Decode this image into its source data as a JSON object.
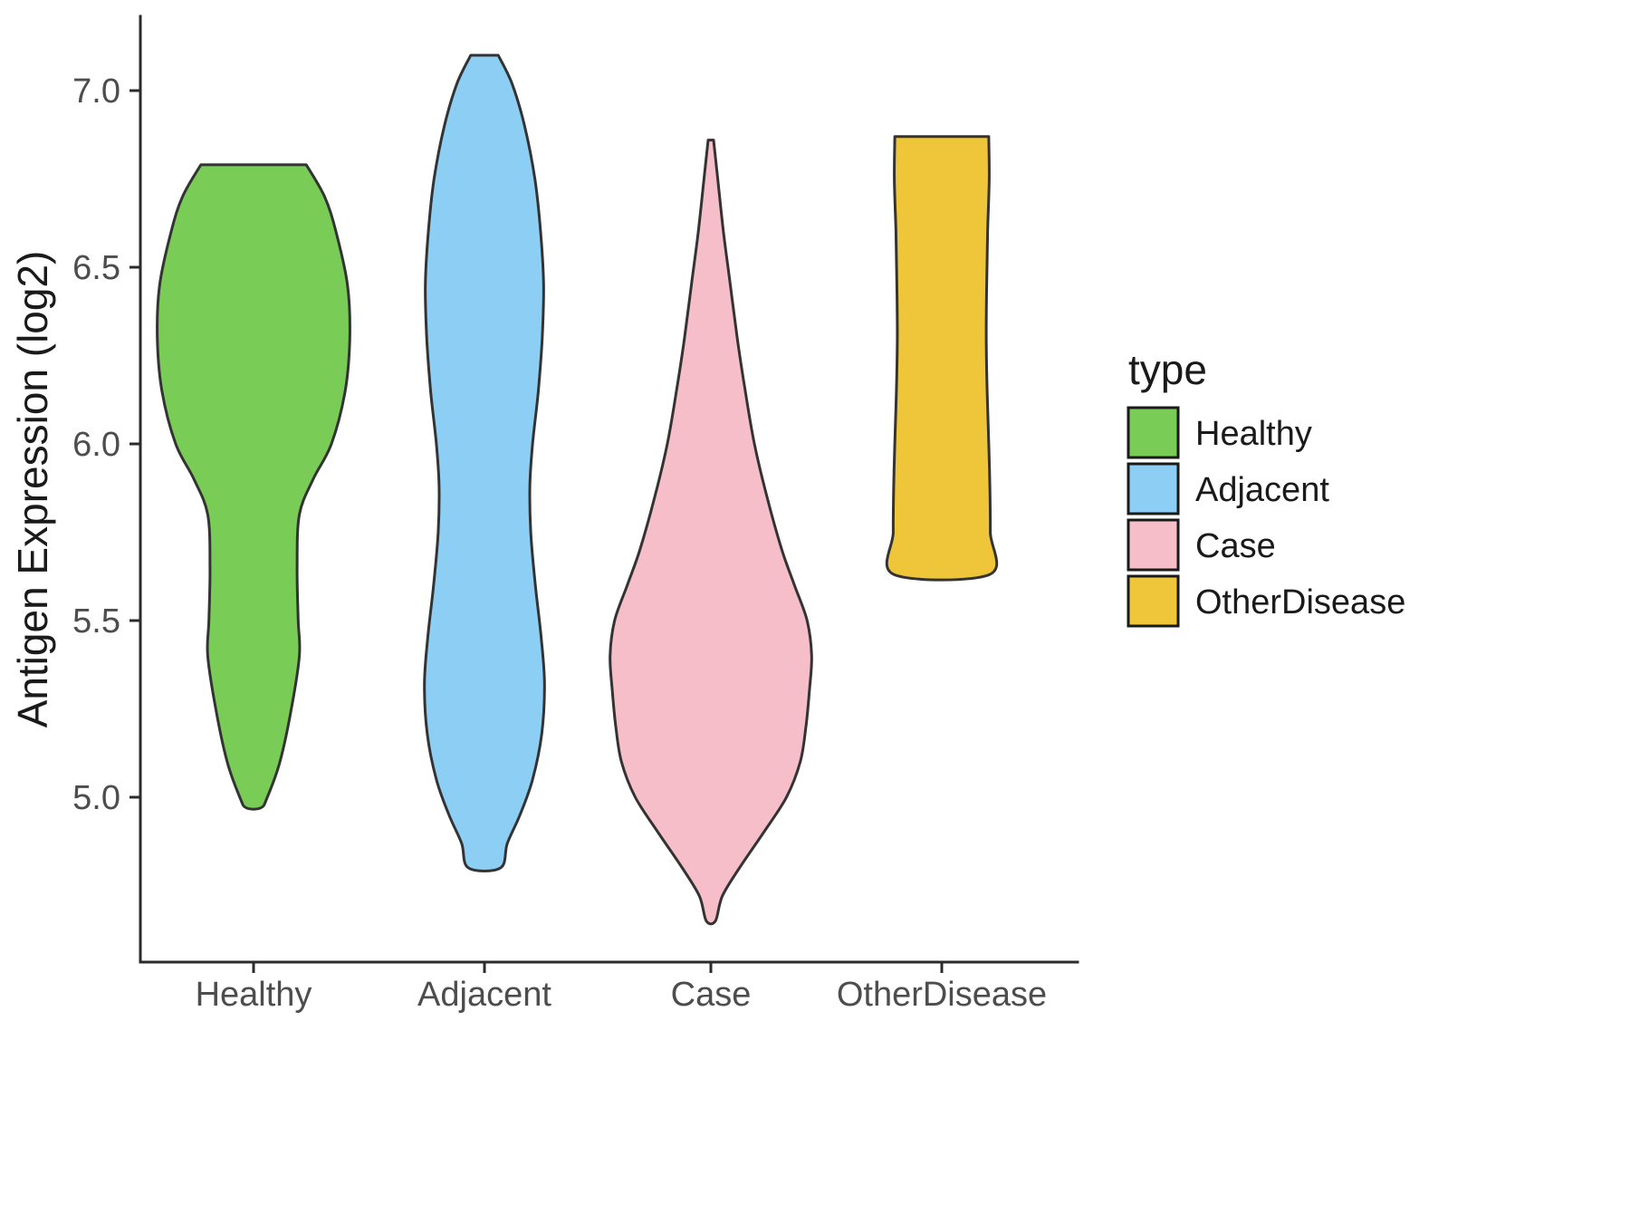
{
  "figure": {
    "background": "#ffffff",
    "axis_color": "#2b2b2b",
    "violin_outline_color": "#333333",
    "tick_label_color": "#4d4d4d"
  },
  "chart_data": {
    "type": "violin",
    "xlabel": "",
    "ylabel": "Antigen Expression (log2)",
    "ylim": [
      4.45,
      7.25
    ],
    "y_ticks": [
      5.0,
      5.5,
      6.0,
      6.5,
      7.0
    ],
    "y_tick_labels": [
      "5.0",
      "5.5",
      "6.0",
      "6.5",
      "7.0"
    ],
    "categories": [
      "Healthy",
      "Adjacent",
      "Case",
      "OtherDisease"
    ],
    "grid": false,
    "legend": {
      "title": "type",
      "position": "right",
      "entries": [
        {
          "label": "Healthy",
          "color": "#79CC55"
        },
        {
          "label": "Adjacent",
          "color": "#8DCFF4"
        },
        {
          "label": "Case",
          "color": "#F6BEC8"
        },
        {
          "label": "OtherDisease",
          "color": "#EFC539"
        }
      ]
    },
    "series": [
      {
        "name": "Healthy",
        "color": "#79CC55",
        "y_min": 4.97,
        "y_max": 6.79,
        "profile": [
          [
            6.79,
            0.23
          ],
          [
            6.7,
            0.31
          ],
          [
            6.6,
            0.36
          ],
          [
            6.45,
            0.41
          ],
          [
            6.3,
            0.42
          ],
          [
            6.15,
            0.4
          ],
          [
            6.0,
            0.34
          ],
          [
            5.9,
            0.26
          ],
          [
            5.8,
            0.2
          ],
          [
            5.65,
            0.19
          ],
          [
            5.5,
            0.195
          ],
          [
            5.4,
            0.2
          ],
          [
            5.25,
            0.165
          ],
          [
            5.1,
            0.115
          ],
          [
            5.0,
            0.06
          ],
          [
            4.97,
            0.032
          ]
        ]
      },
      {
        "name": "Adjacent",
        "color": "#8DCFF4",
        "y_min": 4.8,
        "y_max": 7.1,
        "profile": [
          [
            7.1,
            0.06
          ],
          [
            7.02,
            0.12
          ],
          [
            6.9,
            0.175
          ],
          [
            6.75,
            0.22
          ],
          [
            6.6,
            0.245
          ],
          [
            6.45,
            0.258
          ],
          [
            6.3,
            0.252
          ],
          [
            6.15,
            0.235
          ],
          [
            6.0,
            0.21
          ],
          [
            5.88,
            0.198
          ],
          [
            5.75,
            0.202
          ],
          [
            5.6,
            0.222
          ],
          [
            5.45,
            0.248
          ],
          [
            5.32,
            0.262
          ],
          [
            5.18,
            0.25
          ],
          [
            5.05,
            0.21
          ],
          [
            4.95,
            0.155
          ],
          [
            4.87,
            0.1
          ],
          [
            4.8,
            0.07
          ]
        ]
      },
      {
        "name": "Case",
        "color": "#F6BEC8",
        "y_min": 4.65,
        "y_max": 6.86,
        "profile": [
          [
            6.86,
            0.012
          ],
          [
            6.75,
            0.03
          ],
          [
            6.6,
            0.055
          ],
          [
            6.45,
            0.085
          ],
          [
            6.3,
            0.115
          ],
          [
            6.15,
            0.15
          ],
          [
            6.0,
            0.19
          ],
          [
            5.85,
            0.245
          ],
          [
            5.7,
            0.31
          ],
          [
            5.6,
            0.365
          ],
          [
            5.5,
            0.42
          ],
          [
            5.4,
            0.44
          ],
          [
            5.3,
            0.43
          ],
          [
            5.2,
            0.415
          ],
          [
            5.1,
            0.39
          ],
          [
            5.0,
            0.33
          ],
          [
            4.9,
            0.23
          ],
          [
            4.8,
            0.125
          ],
          [
            4.72,
            0.05
          ],
          [
            4.65,
            0.02
          ]
        ]
      },
      {
        "name": "OtherDisease",
        "color": "#EFC539",
        "y_min": 5.63,
        "y_max": 6.87,
        "profile": [
          [
            6.87,
            0.205
          ],
          [
            6.75,
            0.207
          ],
          [
            6.6,
            0.2
          ],
          [
            6.45,
            0.196
          ],
          [
            6.3,
            0.194
          ],
          [
            6.15,
            0.198
          ],
          [
            6.0,
            0.205
          ],
          [
            5.88,
            0.21
          ],
          [
            5.75,
            0.212
          ],
          [
            5.63,
            0.208
          ]
        ]
      }
    ]
  }
}
